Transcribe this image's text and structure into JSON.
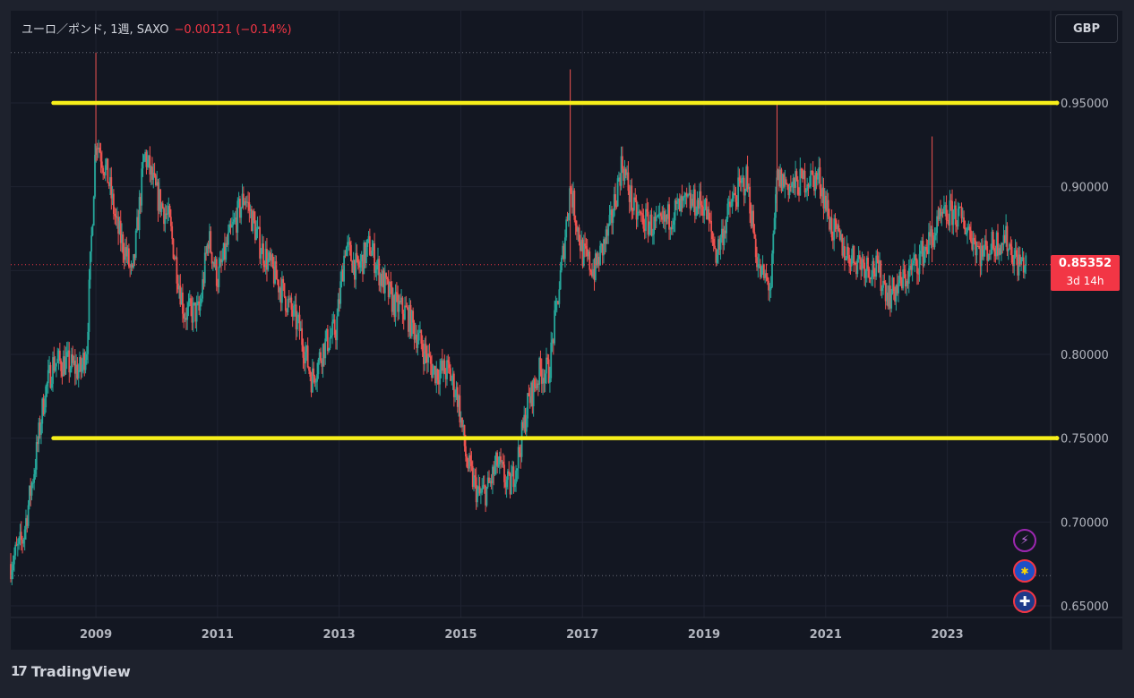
{
  "legend": {
    "symbol": "ユーロ／ポンド, 1週, SAXO",
    "change": "−0.00121 (−0.14%)"
  },
  "currency_button": "GBP",
  "current_price": {
    "value": "0.85352",
    "countdown": "3d 14h",
    "level": 0.85352
  },
  "branding": {
    "logo_glyph": "17",
    "name": "TradingView"
  },
  "event_icons": [
    {
      "name": "lightning-icon",
      "glyph": "⚡",
      "color": "#9c27b0"
    },
    {
      "name": "eu-flag-icon",
      "glyph": "✱",
      "color": "#1e50c8"
    },
    {
      "name": "uk-flag-icon",
      "glyph": "✚",
      "color": "#c8102e"
    }
  ],
  "colors": {
    "up": "#26a69a",
    "down": "#ef5350",
    "horizontal_lines": "#f7ef1a",
    "price_line": "#f23645",
    "axis_text": "#b2b5be"
  },
  "chart_data": {
    "type": "candlestick",
    "title": "ユーロ／ポンド, 1週, SAXO",
    "x_ticks": [
      "2009",
      "2011",
      "2013",
      "2015",
      "2017",
      "2019",
      "2021",
      "2023"
    ],
    "y_ticks": [
      "0.95000",
      "0.90000",
      "0.85000",
      "0.80000",
      "0.75000",
      "0.70000",
      "0.65000"
    ],
    "y_range": [
      0.65,
      0.95
    ],
    "x_range": [
      2007.6,
      2024.7
    ],
    "horizontal_levels": [
      {
        "price": 0.95,
        "from": 2008.3,
        "color": "#f7ef1a"
      },
      {
        "price": 0.75,
        "from": 2008.3,
        "color": "#f7ef1a"
      }
    ],
    "dotted_levels": [
      0.98,
      0.668
    ],
    "series": [
      {
        "name": "EUR/GBP weekly close",
        "points": [
          [
            2007.6,
            0.675
          ],
          [
            2007.8,
            0.69
          ],
          [
            2008.0,
            0.735
          ],
          [
            2008.15,
            0.775
          ],
          [
            2008.3,
            0.795
          ],
          [
            2008.5,
            0.795
          ],
          [
            2008.75,
            0.79
          ],
          [
            2008.85,
            0.805
          ],
          [
            2009.0,
            0.93
          ],
          [
            2009.2,
            0.905
          ],
          [
            2009.35,
            0.875
          ],
          [
            2009.5,
            0.86
          ],
          [
            2009.6,
            0.845
          ],
          [
            2009.8,
            0.92
          ],
          [
            2010.0,
            0.895
          ],
          [
            2010.2,
            0.88
          ],
          [
            2010.45,
            0.825
          ],
          [
            2010.7,
            0.825
          ],
          [
            2010.85,
            0.87
          ],
          [
            2011.0,
            0.845
          ],
          [
            2011.2,
            0.87
          ],
          [
            2011.45,
            0.895
          ],
          [
            2011.7,
            0.865
          ],
          [
            2011.9,
            0.85
          ],
          [
            2012.1,
            0.835
          ],
          [
            2012.35,
            0.815
          ],
          [
            2012.55,
            0.785
          ],
          [
            2012.75,
            0.805
          ],
          [
            2012.95,
            0.815
          ],
          [
            2013.1,
            0.865
          ],
          [
            2013.3,
            0.85
          ],
          [
            2013.5,
            0.865
          ],
          [
            2013.7,
            0.845
          ],
          [
            2013.9,
            0.83
          ],
          [
            2014.1,
            0.825
          ],
          [
            2014.3,
            0.81
          ],
          [
            2014.55,
            0.79
          ],
          [
            2014.8,
            0.79
          ],
          [
            2014.95,
            0.775
          ],
          [
            2015.1,
            0.735
          ],
          [
            2015.3,
            0.715
          ],
          [
            2015.45,
            0.72
          ],
          [
            2015.6,
            0.735
          ],
          [
            2015.8,
            0.72
          ],
          [
            2015.95,
            0.74
          ],
          [
            2016.1,
            0.77
          ],
          [
            2016.3,
            0.79
          ],
          [
            2016.45,
            0.79
          ],
          [
            2016.65,
            0.85
          ],
          [
            2016.8,
            0.9
          ],
          [
            2017.0,
            0.86
          ],
          [
            2017.2,
            0.85
          ],
          [
            2017.45,
            0.875
          ],
          [
            2017.65,
            0.915
          ],
          [
            2017.85,
            0.885
          ],
          [
            2018.0,
            0.88
          ],
          [
            2018.25,
            0.875
          ],
          [
            2018.5,
            0.885
          ],
          [
            2018.75,
            0.89
          ],
          [
            2019.0,
            0.89
          ],
          [
            2019.2,
            0.86
          ],
          [
            2019.45,
            0.89
          ],
          [
            2019.7,
            0.905
          ],
          [
            2019.9,
            0.85
          ],
          [
            2020.1,
            0.84
          ],
          [
            2020.2,
            0.905
          ],
          [
            2020.45,
            0.9
          ],
          [
            2020.7,
            0.905
          ],
          [
            2020.9,
            0.905
          ],
          [
            2021.1,
            0.875
          ],
          [
            2021.35,
            0.86
          ],
          [
            2021.6,
            0.855
          ],
          [
            2021.85,
            0.85
          ],
          [
            2022.05,
            0.835
          ],
          [
            2022.3,
            0.845
          ],
          [
            2022.5,
            0.855
          ],
          [
            2022.75,
            0.87
          ],
          [
            2022.9,
            0.88
          ],
          [
            2023.1,
            0.885
          ],
          [
            2023.35,
            0.875
          ],
          [
            2023.55,
            0.86
          ],
          [
            2023.75,
            0.865
          ],
          [
            2023.95,
            0.87
          ],
          [
            2024.15,
            0.855
          ],
          [
            2024.3,
            0.854
          ]
        ]
      }
    ],
    "spikes": [
      {
        "x": 2009.0,
        "high": 0.98,
        "low": 0.915
      },
      {
        "x": 2016.8,
        "high": 0.97,
        "low": 0.855
      },
      {
        "x": 2022.75,
        "high": 0.93,
        "low": 0.855
      },
      {
        "x": 2020.2,
        "high": 0.95,
        "low": 0.885
      }
    ]
  }
}
